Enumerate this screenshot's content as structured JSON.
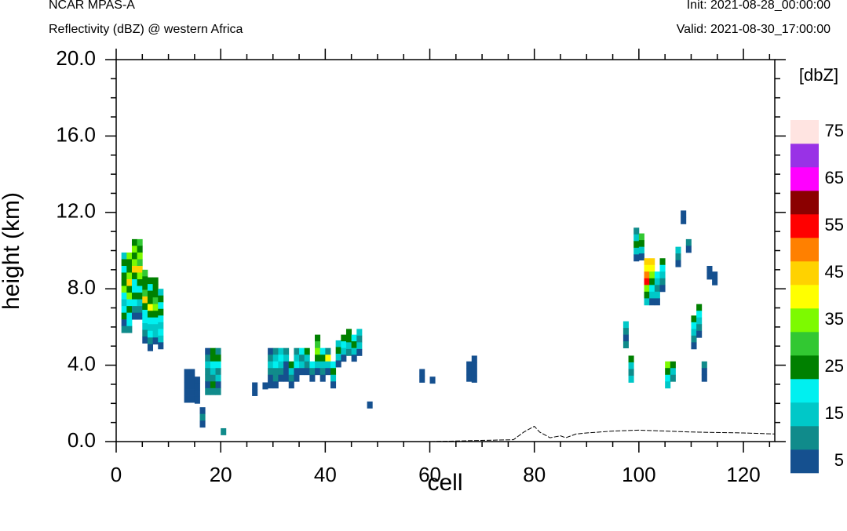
{
  "header": {
    "model": "NCAR MPAS-A",
    "field": "Reflectivity (dBZ) @ western Africa",
    "init": "Init: 2021-08-28_00:00:00",
    "valid": "Valid: 2021-08-30_17:00:00"
  },
  "colors": {
    "scale": [
      "#15508f",
      "#108b8b",
      "#00c8c8",
      "#00f0f0",
      "#008000",
      "#32c832",
      "#7dfa00",
      "#ffff00",
      "#ffd200",
      "#ff8000",
      "#ff0000",
      "#8b0000",
      "#ff00ff",
      "#9932e6",
      "#ffe4e1"
    ],
    "terrain": "#000000",
    "axis": "#000000"
  },
  "chart_data": {
    "type": "heatmap",
    "title": "",
    "xlabel": "cell",
    "ylabel": "height (km)",
    "xlim": [
      0,
      126
    ],
    "ylim": [
      0,
      20
    ],
    "x_ticks": [
      0,
      20,
      40,
      60,
      80,
      100,
      120
    ],
    "y_ticks": [
      "0.0",
      "4.0",
      "8.0",
      "12.0",
      "16.0",
      "20.0"
    ],
    "colorbar": {
      "unit": "[dbZ]",
      "labels": [
        5,
        15,
        25,
        35,
        45,
        55,
        65,
        75
      ],
      "bins": [
        5,
        10,
        15,
        20,
        25,
        30,
        35,
        40,
        45,
        50,
        55,
        60,
        65,
        70,
        75
      ],
      "placement": "right"
    },
    "cell_size": {
      "x": 1,
      "y": 0.35
    },
    "terrain": {
      "x": [
        0,
        10,
        20,
        40,
        60,
        76,
        78,
        80,
        81,
        83,
        85,
        86,
        88,
        90,
        95,
        100,
        105,
        110,
        120,
        126
      ],
      "y": [
        0,
        0,
        0,
        0,
        0,
        0.1,
        0.5,
        0.8,
        0.5,
        0.2,
        0.3,
        0.2,
        0.4,
        0.45,
        0.55,
        0.6,
        0.55,
        0.5,
        0.45,
        0.4
      ]
    },
    "columns": [
      {
        "x": 1,
        "top": 9.9,
        "vals": [
          15,
          25,
          20,
          25,
          25,
          35,
          20,
          15,
          20,
          25,
          5,
          10
        ]
      },
      {
        "x": 2,
        "top": 9.9,
        "vals": [
          35,
          25,
          25,
          35,
          45,
          25,
          35,
          20,
          25,
          20,
          20,
          10
        ]
      },
      {
        "x": 3,
        "top": 10.6,
        "vals": [
          25,
          35,
          25,
          35,
          45,
          25,
          20,
          20,
          25,
          20,
          10,
          5
        ]
      },
      {
        "x": 4,
        "top": 10.6,
        "vals": [
          30,
          25,
          35,
          30,
          45,
          35,
          25,
          20,
          25,
          15,
          10,
          5
        ]
      },
      {
        "x": 5,
        "top": 9.0,
        "vals": [
          30,
          25,
          25,
          30,
          45,
          25,
          20,
          20,
          15,
          10,
          5
        ]
      },
      {
        "x": 6,
        "top": 8.6,
        "vals": [
          25,
          20,
          25,
          25,
          40,
          25,
          20,
          15,
          20,
          10,
          5
        ]
      },
      {
        "x": 7,
        "top": 8.6,
        "vals": [
          25,
          25,
          25,
          30,
          35,
          25,
          20,
          15,
          15,
          5
        ]
      },
      {
        "x": 8,
        "top": 8.0,
        "vals": [
          15,
          25,
          20,
          25,
          20,
          15,
          20,
          15,
          5
        ]
      },
      {
        "x": 13,
        "top": 3.8,
        "vals": [
          5,
          5,
          5,
          5,
          5
        ]
      },
      {
        "x": 14,
        "top": 3.8,
        "vals": [
          5,
          5,
          5,
          5,
          5
        ]
      },
      {
        "x": 15,
        "top": 3.4,
        "vals": [
          5,
          5,
          5,
          5
        ]
      },
      {
        "x": 16,
        "top": 1.8,
        "vals": [
          5,
          10,
          5
        ]
      },
      {
        "x": 17,
        "top": 4.9,
        "vals": [
          5,
          10,
          15,
          10,
          10,
          5,
          10
        ]
      },
      {
        "x": 18,
        "top": 4.9,
        "vals": [
          25,
          25,
          20,
          15,
          10,
          25,
          10
        ]
      },
      {
        "x": 19,
        "top": 4.9,
        "vals": [
          10,
          25,
          20,
          10,
          15,
          5,
          10
        ]
      },
      {
        "x": 20,
        "top": 0.7,
        "vals": [
          10
        ]
      },
      {
        "x": 26,
        "top": 3.1,
        "vals": [
          5,
          5
        ]
      },
      {
        "x": 28,
        "top": 3.1,
        "vals": [
          5
        ]
      },
      {
        "x": 29,
        "top": 4.9,
        "vals": [
          5,
          10,
          15,
          10,
          5,
          5
        ]
      },
      {
        "x": 30,
        "top": 4.9,
        "vals": [
          10,
          15,
          20,
          10,
          10,
          5
        ]
      },
      {
        "x": 31,
        "top": 4.9,
        "vals": [
          15,
          20,
          15,
          10,
          5
        ]
      },
      {
        "x": 32,
        "top": 4.9,
        "vals": [
          10,
          15,
          5,
          5,
          5
        ]
      },
      {
        "x": 33,
        "top": 4.2,
        "vals": [
          25,
          15,
          10,
          5
        ]
      },
      {
        "x": 34,
        "top": 4.9,
        "vals": [
          10,
          15,
          20,
          5,
          5
        ]
      },
      {
        "x": 35,
        "top": 4.9,
        "vals": [
          20,
          10,
          15,
          5
        ]
      },
      {
        "x": 36,
        "top": 4.9,
        "vals": [
          25,
          15,
          10,
          5
        ]
      },
      {
        "x": 37,
        "top": 4.2,
        "vals": [
          20,
          10,
          5
        ]
      },
      {
        "x": 38,
        "top": 5.6,
        "vals": [
          25,
          30,
          35,
          25,
          15,
          5
        ]
      },
      {
        "x": 39,
        "top": 4.9,
        "vals": [
          20,
          25,
          15,
          10,
          5
        ]
      },
      {
        "x": 40,
        "top": 4.9,
        "vals": [
          10,
          40,
          15,
          5
        ]
      },
      {
        "x": 41,
        "top": 4.2,
        "vals": [
          20,
          25,
          15,
          5
        ]
      },
      {
        "x": 42,
        "top": 5.3,
        "vals": [
          15,
          25,
          15,
          5
        ]
      },
      {
        "x": 43,
        "top": 5.6,
        "vals": [
          25,
          20,
          15,
          5
        ]
      },
      {
        "x": 44,
        "top": 5.9,
        "vals": [
          25,
          25,
          15,
          10
        ]
      },
      {
        "x": 45,
        "top": 5.6,
        "vals": [
          20,
          25,
          15,
          5
        ]
      },
      {
        "x": 46,
        "top": 5.9,
        "vals": [
          15,
          10,
          15,
          5
        ]
      },
      {
        "x": 48,
        "top": 2.1,
        "vals": [
          5
        ]
      },
      {
        "x": 58,
        "top": 3.8,
        "vals": [
          5,
          5
        ]
      },
      {
        "x": 60,
        "top": 3.4,
        "vals": [
          5
        ]
      },
      {
        "x": 67,
        "top": 4.2,
        "vals": [
          5,
          5,
          5
        ]
      },
      {
        "x": 68,
        "top": 4.5,
        "vals": [
          5,
          5,
          5,
          5
        ]
      },
      {
        "x": 97,
        "top": 6.3,
        "vals": [
          15,
          10,
          5,
          10
        ]
      },
      {
        "x": 98,
        "top": 4.5,
        "vals": [
          25,
          15,
          10,
          15
        ]
      },
      {
        "x": 99,
        "top": 11.2,
        "vals": [
          10,
          15,
          25,
          15,
          5
        ]
      },
      {
        "x": 100,
        "top": 10.9,
        "vals": [
          30,
          25,
          15,
          5
        ]
      },
      {
        "x": 101,
        "top": 9.6,
        "vals": [
          45,
          40,
          50,
          55,
          35,
          25,
          15
        ]
      },
      {
        "x": 102,
        "top": 9.6,
        "vals": [
          45,
          40,
          35,
          25,
          20,
          15,
          5
        ]
      },
      {
        "x": 103,
        "top": 8.9,
        "vals": [
          20,
          15,
          10,
          15,
          5
        ]
      },
      {
        "x": 104,
        "top": 9.6,
        "vals": [
          25,
          20,
          15,
          10,
          5
        ]
      },
      {
        "x": 105,
        "top": 4.2,
        "vals": [
          35,
          25,
          20,
          15
        ]
      },
      {
        "x": 106,
        "top": 4.2,
        "vals": [
          25,
          15,
          10
        ]
      },
      {
        "x": 107,
        "top": 10.2,
        "vals": [
          15,
          10,
          5
        ]
      },
      {
        "x": 108,
        "top": 12.1,
        "vals": [
          5,
          5
        ]
      },
      {
        "x": 109,
        "top": 10.6,
        "vals": [
          10,
          5
        ]
      },
      {
        "x": 110,
        "top": 6.6,
        "vals": [
          25,
          20,
          15,
          10,
          5
        ]
      },
      {
        "x": 111,
        "top": 7.2,
        "vals": [
          25,
          20,
          15,
          10,
          5
        ]
      },
      {
        "x": 112,
        "top": 4.2,
        "vals": [
          10,
          5,
          5
        ]
      },
      {
        "x": 113,
        "top": 9.2,
        "vals": [
          5,
          5
        ]
      },
      {
        "x": 114,
        "top": 8.9,
        "vals": [
          5,
          5
        ]
      }
    ]
  }
}
